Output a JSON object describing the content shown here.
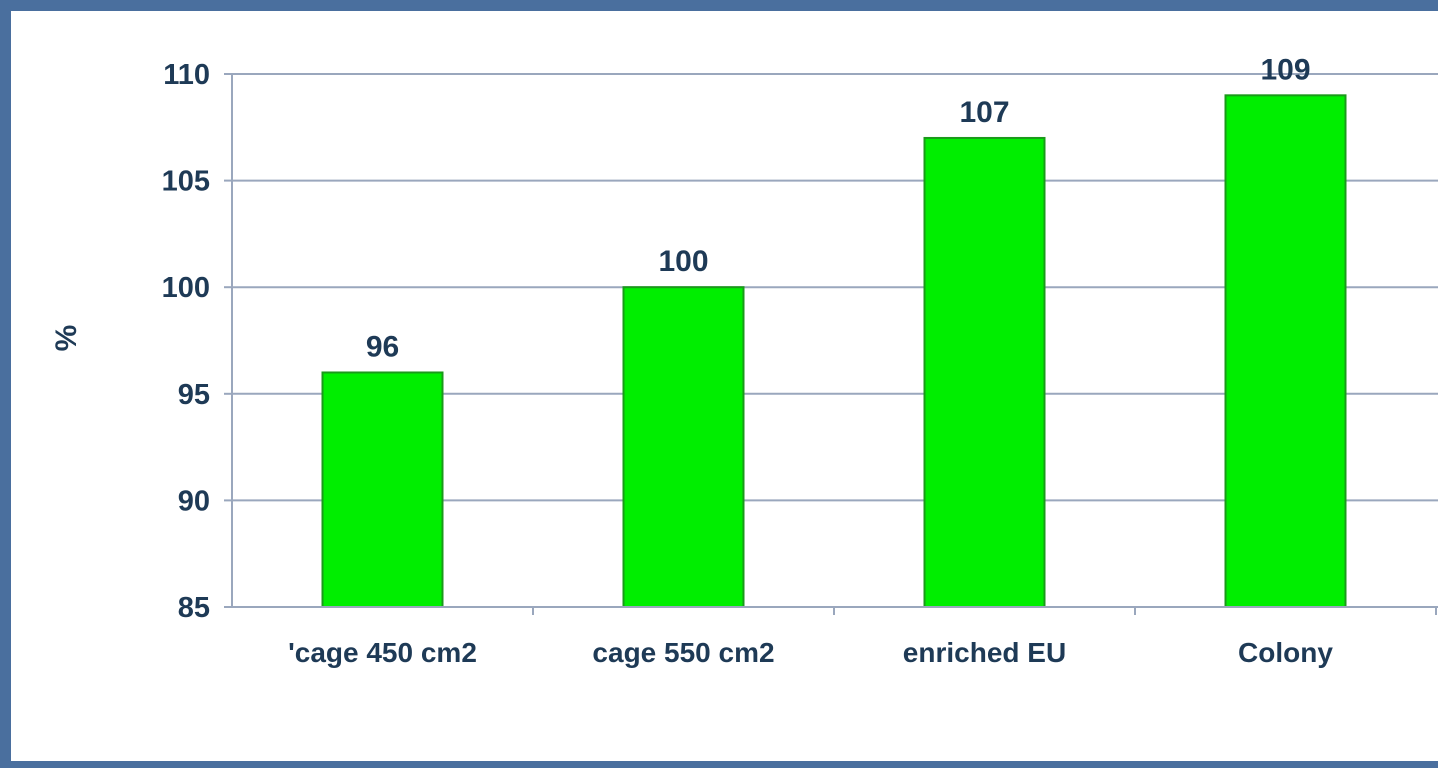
{
  "chart_data": {
    "type": "bar",
    "title": "",
    "xlabel": "",
    "ylabel": "%",
    "categories": [
      "'cage 450 cm2",
      "cage 550 cm2",
      "enriched EU",
      "Colony"
    ],
    "values": [
      96,
      100,
      107,
      109
    ],
    "data_labels": [
      "96",
      "100",
      "107",
      "109"
    ],
    "ylim": [
      85,
      110
    ],
    "yticks": [
      85,
      90,
      95,
      100,
      105,
      110
    ],
    "ytick_labels": [
      "85",
      "90",
      "95",
      "100",
      "105",
      "110"
    ],
    "grid": true,
    "legend": "none",
    "bar_color": "#00ee00",
    "bar_edge_color": "#1a9a1a",
    "text_color": "#1e3a56",
    "frame_color": "#4a6f9e",
    "gridline_color": "#9aa7bd"
  }
}
